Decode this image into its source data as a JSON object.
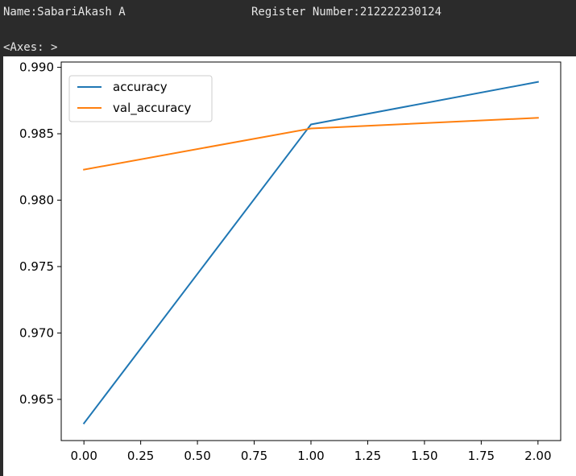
{
  "output": {
    "name_line": "Name:SabariAkash A",
    "register_line": "Register Number:212222230124",
    "axes_repr": "<Axes: >"
  },
  "colors": {
    "background": "#2b2b2b",
    "text": "#e6e6e6",
    "accuracy": "#1f77b4",
    "val_accuracy": "#ff7f0e"
  },
  "chart_data": {
    "type": "line",
    "title": "",
    "xlabel": "",
    "ylabel": "",
    "xlim": [
      -0.1,
      2.1
    ],
    "ylim": [
      0.9619,
      0.9904
    ],
    "x_ticks": [
      "0.00",
      "0.25",
      "0.50",
      "0.75",
      "1.00",
      "1.25",
      "1.50",
      "1.75",
      "2.00"
    ],
    "y_ticks": [
      "0.965",
      "0.970",
      "0.975",
      "0.980",
      "0.985",
      "0.990"
    ],
    "grid": false,
    "legend_position": "top-left",
    "series": [
      {
        "name": "accuracy",
        "color": "#1f77b4",
        "x": [
          0,
          1,
          2
        ],
        "y": [
          0.9632,
          0.9857,
          0.9889
        ]
      },
      {
        "name": "val_accuracy",
        "color": "#ff7f0e",
        "x": [
          0,
          1,
          2
        ],
        "y": [
          0.9823,
          0.9854,
          0.9862
        ]
      }
    ]
  }
}
